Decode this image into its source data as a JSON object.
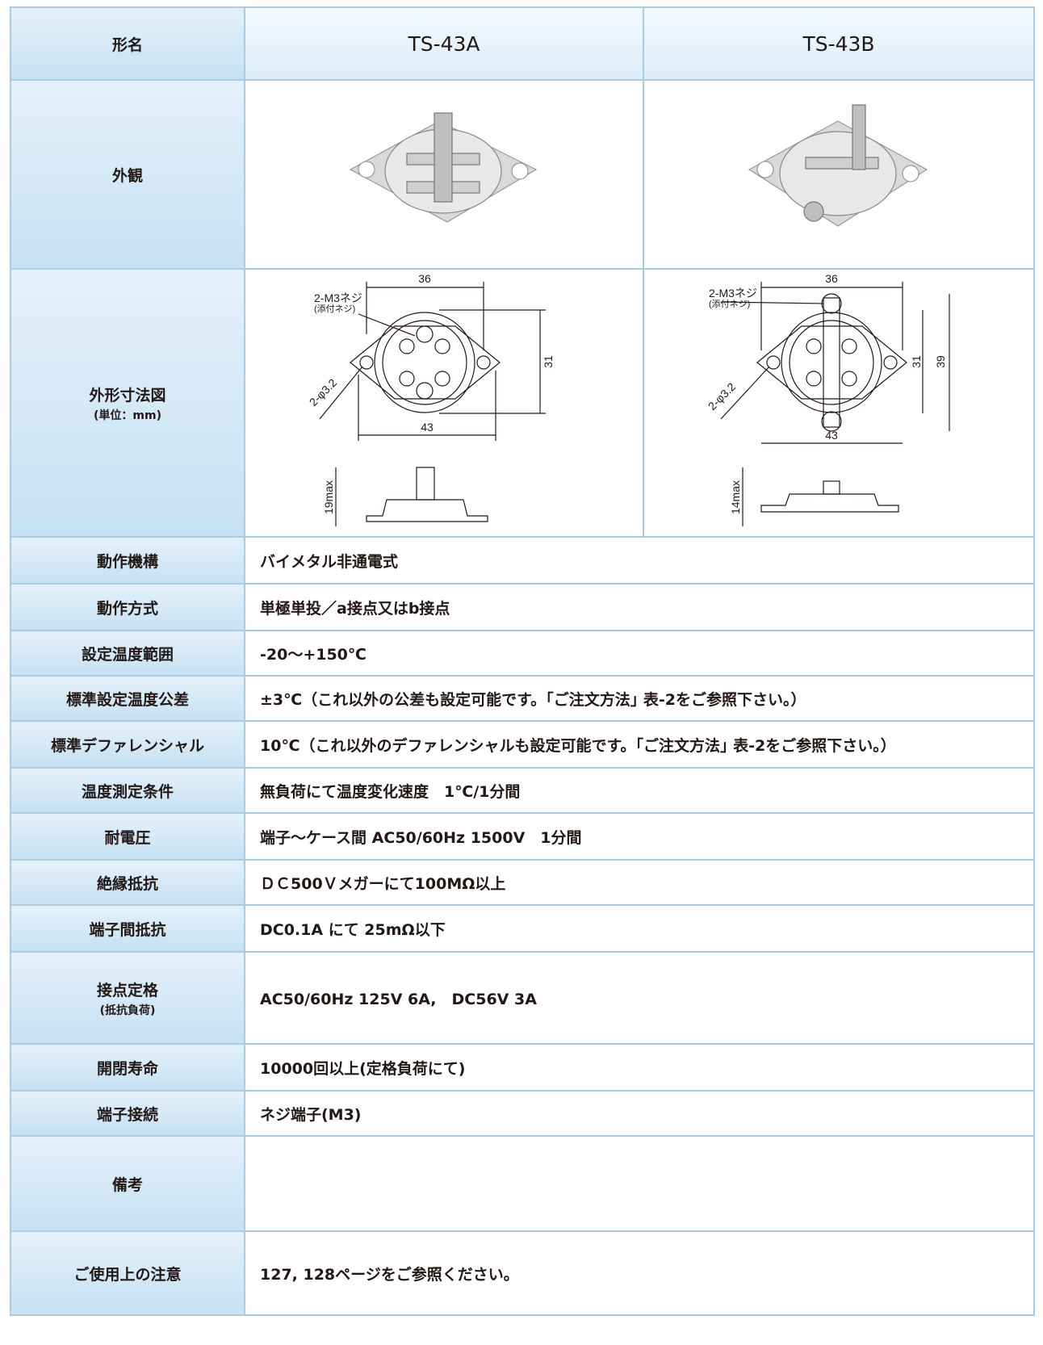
{
  "table": {
    "header": {
      "label": "形名",
      "models": [
        "TS-43A",
        "TS-43B"
      ]
    },
    "appearance": {
      "label": "外観"
    },
    "dimensions": {
      "label": "外形寸法図",
      "unit": "(単位：mm)",
      "drawings": [
        {
          "width": "36",
          "length": "43",
          "height": "31",
          "screw": "2-M3ネジ",
          "screw_note": "(添付ネジ)",
          "hole": "2-φ3.2",
          "side": "19max"
        },
        {
          "width": "36",
          "length": "43",
          "height": "31",
          "total": "39",
          "screw": "2-M3ネジ",
          "screw_note": "(添付ネジ)",
          "hole": "2-φ3.2",
          "side": "14max"
        }
      ]
    },
    "rows": [
      {
        "label": "動作機構",
        "value": "バイメタル非通電式"
      },
      {
        "label": "動作方式",
        "value": "単極単投／a接点又はb接点"
      },
      {
        "label": "設定温度範囲",
        "value": "-20～+150℃"
      },
      {
        "label": "標準設定温度公差",
        "value": "±3℃（これ以外の公差も設定可能です。｢ご注文方法｣ 表-2をご参照下さい。）"
      },
      {
        "label": "標準デファレンシャル",
        "value": "10℃（これ以外のデファレンシャルも設定可能です。｢ご注文方法｣ 表-2をご参照下さい。）"
      },
      {
        "label": "温度測定条件",
        "value": "無負荷にて温度変化速度　1℃/1分間"
      },
      {
        "label": "耐電圧",
        "value": "端子～ケース間 AC50/60Hz 1500V　1分間"
      },
      {
        "label": "絶縁抵抗",
        "value": "ＤＣ500Ｖメガーにて100MΩ以上"
      },
      {
        "label": "端子間抵抗",
        "value": "DC0.1A にて 25mΩ以下"
      },
      {
        "label": "接点定格",
        "sub": "(抵抗負荷)",
        "value": "AC50/60Hz 125V 6A,　DC56V 3A"
      },
      {
        "label": "開閉寿命",
        "value": "10000回以上(定格負荷にて)"
      },
      {
        "label": "端子接続",
        "value": "ネジ端子(M3)"
      },
      {
        "label": "備考"
      },
      {
        "label": "ご使用上の注意",
        "value": "127, 128ページをご参照ください。"
      }
    ]
  }
}
